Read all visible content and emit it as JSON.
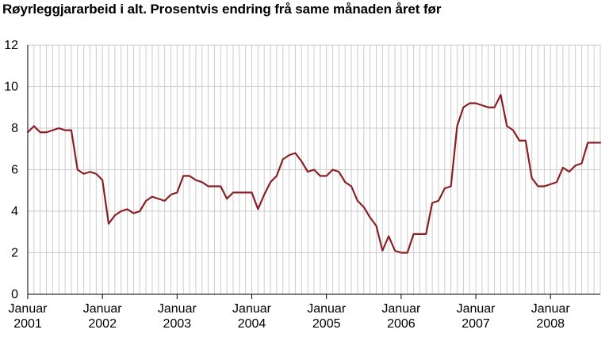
{
  "chart_data": {
    "type": "line",
    "title": "Røyrleggjararbeid i alt. Prosentvis endring frå same månaden året før",
    "xlabel": "",
    "ylabel": "",
    "ylim": [
      0,
      12
    ],
    "yticks": [
      "0",
      "2",
      "4",
      "6",
      "8",
      "10",
      "12"
    ],
    "grid": true,
    "legend": "none",
    "x_start": "2001-01",
    "x_frequency": "monthly",
    "x_tick_labels": [
      {
        "line1": "Januar",
        "line2": "2001"
      },
      {
        "line1": "Januar",
        "line2": "2002"
      },
      {
        "line1": "Januar",
        "line2": "2003"
      },
      {
        "line1": "Januar",
        "line2": "2004"
      },
      {
        "line1": "Januar",
        "line2": "2005"
      },
      {
        "line1": "Januar",
        "line2": "2006"
      },
      {
        "line1": "Januar",
        "line2": "2007"
      },
      {
        "line1": "Januar",
        "line2": "2008"
      }
    ],
    "colors": {
      "line": "#8b1e23",
      "grid": "#cccccc",
      "axis": "#000000"
    },
    "series": [
      {
        "values": [
          7.8,
          8.1,
          7.8,
          7.8,
          7.9,
          8.0,
          7.9,
          7.9,
          6.0,
          5.8,
          5.9,
          5.8,
          5.5,
          3.4,
          3.8,
          4.0,
          4.1,
          3.9,
          4.0,
          4.5,
          4.7,
          4.6,
          4.5,
          4.8,
          4.9,
          5.7,
          5.7,
          5.5,
          5.4,
          5.2,
          5.2,
          5.2,
          4.6,
          4.9,
          4.9,
          4.9,
          4.9,
          4.1,
          4.8,
          5.4,
          5.7,
          6.5,
          6.7,
          6.8,
          6.4,
          5.9,
          6.0,
          5.7,
          5.7,
          6.0,
          5.9,
          5.4,
          5.2,
          4.5,
          4.2,
          3.7,
          3.3,
          2.1,
          2.8,
          2.1,
          2.0,
          2.0,
          2.9,
          2.9,
          2.9,
          4.4,
          4.5,
          5.1,
          5.2,
          8.1,
          9.0,
          9.2,
          9.2,
          9.1,
          9.0,
          9.0,
          9.6,
          8.1,
          7.9,
          7.4,
          7.4,
          5.6,
          5.2,
          5.2,
          5.3,
          5.4,
          6.1,
          5.9,
          6.2,
          6.3,
          7.3,
          7.3,
          7.3
        ]
      }
    ]
  }
}
